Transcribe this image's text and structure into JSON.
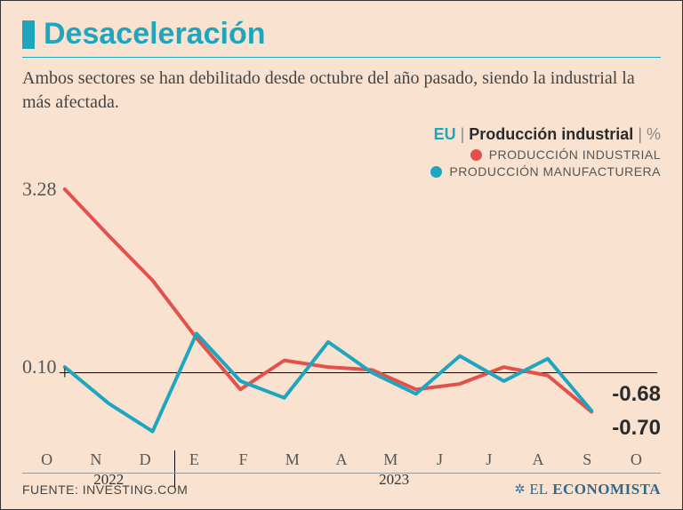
{
  "colors": {
    "background": "#f9e2cf",
    "accent": "#1ea6bf",
    "red": "#e4514c",
    "text_dark": "#2b2b2b",
    "rule": "#1ea6bf",
    "brand": "#2a6b8f"
  },
  "title": "Desaceleración",
  "subtitle": "Ambos sectores se han debilitado desde octubre del año pasado, siendo la industrial la más afectada.",
  "legend": {
    "region": "EU",
    "sep": " | ",
    "metric": "Producción industrial",
    "unit": " | %",
    "series_a": "PRODUCCIÓN INDUSTRIAL",
    "series_b": "PRODUCCIÓN MANUFACTURERA"
  },
  "chart": {
    "type": "line",
    "ylim": [
      -1.2,
      3.28
    ],
    "xcats": [
      "O",
      "N",
      "D",
      "E",
      "F",
      "M",
      "A",
      "M",
      "J",
      "J",
      "A",
      "S",
      "O"
    ],
    "year_break_index": 3,
    "year_labels": [
      {
        "at_index": 1,
        "text": "2022"
      },
      {
        "at_index": 7.5,
        "text": "2023"
      }
    ],
    "series": [
      {
        "key": "industrial",
        "color_key": "red",
        "width": 4,
        "values": [
          3.28,
          2.45,
          1.65,
          0.62,
          -0.3,
          0.22,
          0.1,
          0.05,
          -0.3,
          -0.2,
          0.1,
          -0.05,
          -0.7
        ],
        "end_label": "-0.70"
      },
      {
        "key": "manufacturera",
        "color_key": "accent",
        "width": 4,
        "values": [
          0.1,
          -0.55,
          -1.05,
          0.7,
          -0.15,
          -0.45,
          0.55,
          0.0,
          -0.38,
          0.3,
          -0.15,
          0.25,
          -0.68
        ],
        "end_label": "-0.68"
      }
    ],
    "y_left_labels": [
      {
        "value": 3.28,
        "text": "3.28"
      },
      {
        "value": 0.1,
        "text": "0.10"
      }
    ]
  },
  "source": "FUENTE: INVESTING.COM",
  "brand": {
    "sun": "✲",
    "el": "EL",
    "name": "ECONOMISTA"
  }
}
